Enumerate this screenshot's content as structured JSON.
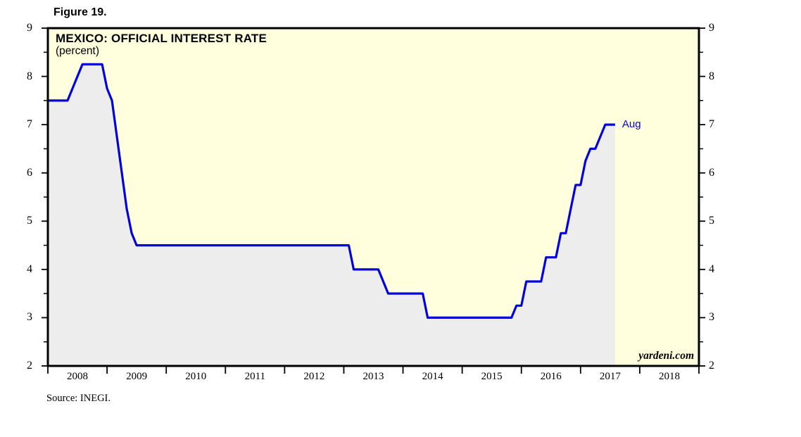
{
  "figure": {
    "label": "Figure 19.",
    "source": "Source: INEGI."
  },
  "chart": {
    "title": "MEXICO: OFFICIAL INTEREST RATE",
    "subtitle": "(percent)",
    "watermark": "yardeni.com",
    "end_label": "Aug"
  },
  "chart_data": {
    "type": "line",
    "title": "MEXICO: OFFICIAL INTEREST RATE",
    "subtitle": "(percent)",
    "series_name": "Mexico official interest rate",
    "annotation": "Aug",
    "ylim": [
      2,
      9
    ],
    "y_major_ticks": [
      9,
      8,
      7,
      6,
      5,
      4,
      3,
      2
    ],
    "y_minor_step": 0.5,
    "x_range": [
      2008,
      2019
    ],
    "x_year_labels": [
      "2008",
      "2009",
      "2010",
      "2011",
      "2012",
      "2013",
      "2014",
      "2015",
      "2016",
      "2017",
      "2018"
    ],
    "grid": "off",
    "line_color": "#0101db",
    "area_fill_color": "#ededee",
    "plot_bg_color": "#ffffde",
    "monthly_values": {
      "2008": [
        7.5,
        7.5,
        7.5,
        7.5,
        7.5,
        7.75,
        8.0,
        8.25,
        8.25,
        8.25,
        8.25,
        8.25
      ],
      "2009": [
        7.75,
        7.5,
        6.75,
        6.0,
        5.25,
        4.75,
        4.5,
        4.5,
        4.5,
        4.5,
        4.5,
        4.5
      ],
      "2010": [
        4.5,
        4.5,
        4.5,
        4.5,
        4.5,
        4.5,
        4.5,
        4.5,
        4.5,
        4.5,
        4.5,
        4.5
      ],
      "2011": [
        4.5,
        4.5,
        4.5,
        4.5,
        4.5,
        4.5,
        4.5,
        4.5,
        4.5,
        4.5,
        4.5,
        4.5
      ],
      "2012": [
        4.5,
        4.5,
        4.5,
        4.5,
        4.5,
        4.5,
        4.5,
        4.5,
        4.5,
        4.5,
        4.5,
        4.5
      ],
      "2013": [
        4.5,
        4.5,
        4.0,
        4.0,
        4.0,
        4.0,
        4.0,
        4.0,
        3.75,
        3.5,
        3.5,
        3.5
      ],
      "2014": [
        3.5,
        3.5,
        3.5,
        3.5,
        3.5,
        3.0,
        3.0,
        3.0,
        3.0,
        3.0,
        3.0,
        3.0
      ],
      "2015": [
        3.0,
        3.0,
        3.0,
        3.0,
        3.0,
        3.0,
        3.0,
        3.0,
        3.0,
        3.0,
        3.0,
        3.25
      ],
      "2016": [
        3.25,
        3.75,
        3.75,
        3.75,
        3.75,
        4.25,
        4.25,
        4.25,
        4.75,
        4.75,
        5.25,
        5.75
      ],
      "2017": [
        5.75,
        6.25,
        6.5,
        6.5,
        6.75,
        7.0,
        7.0,
        7.0
      ]
    }
  }
}
